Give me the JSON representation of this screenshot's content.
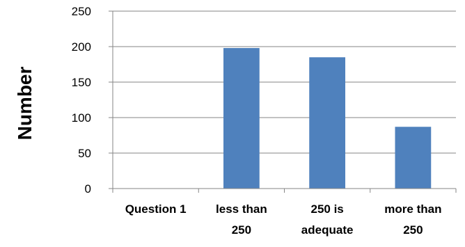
{
  "chart_data": {
    "type": "bar",
    "categories": [
      [
        "Question 1"
      ],
      [
        "less than",
        "250"
      ],
      [
        "250 is",
        "adequate"
      ],
      [
        "more than",
        "250"
      ]
    ],
    "values": [
      null,
      198,
      185,
      87
    ],
    "ylabel": "Number",
    "ylim": [
      0,
      250
    ],
    "yticks": [
      0,
      50,
      100,
      150,
      200,
      250
    ],
    "grid": true,
    "legend": "none",
    "colors": {
      "bar": "#4F81BD",
      "grid": "#868686",
      "axis": "#868686"
    }
  }
}
